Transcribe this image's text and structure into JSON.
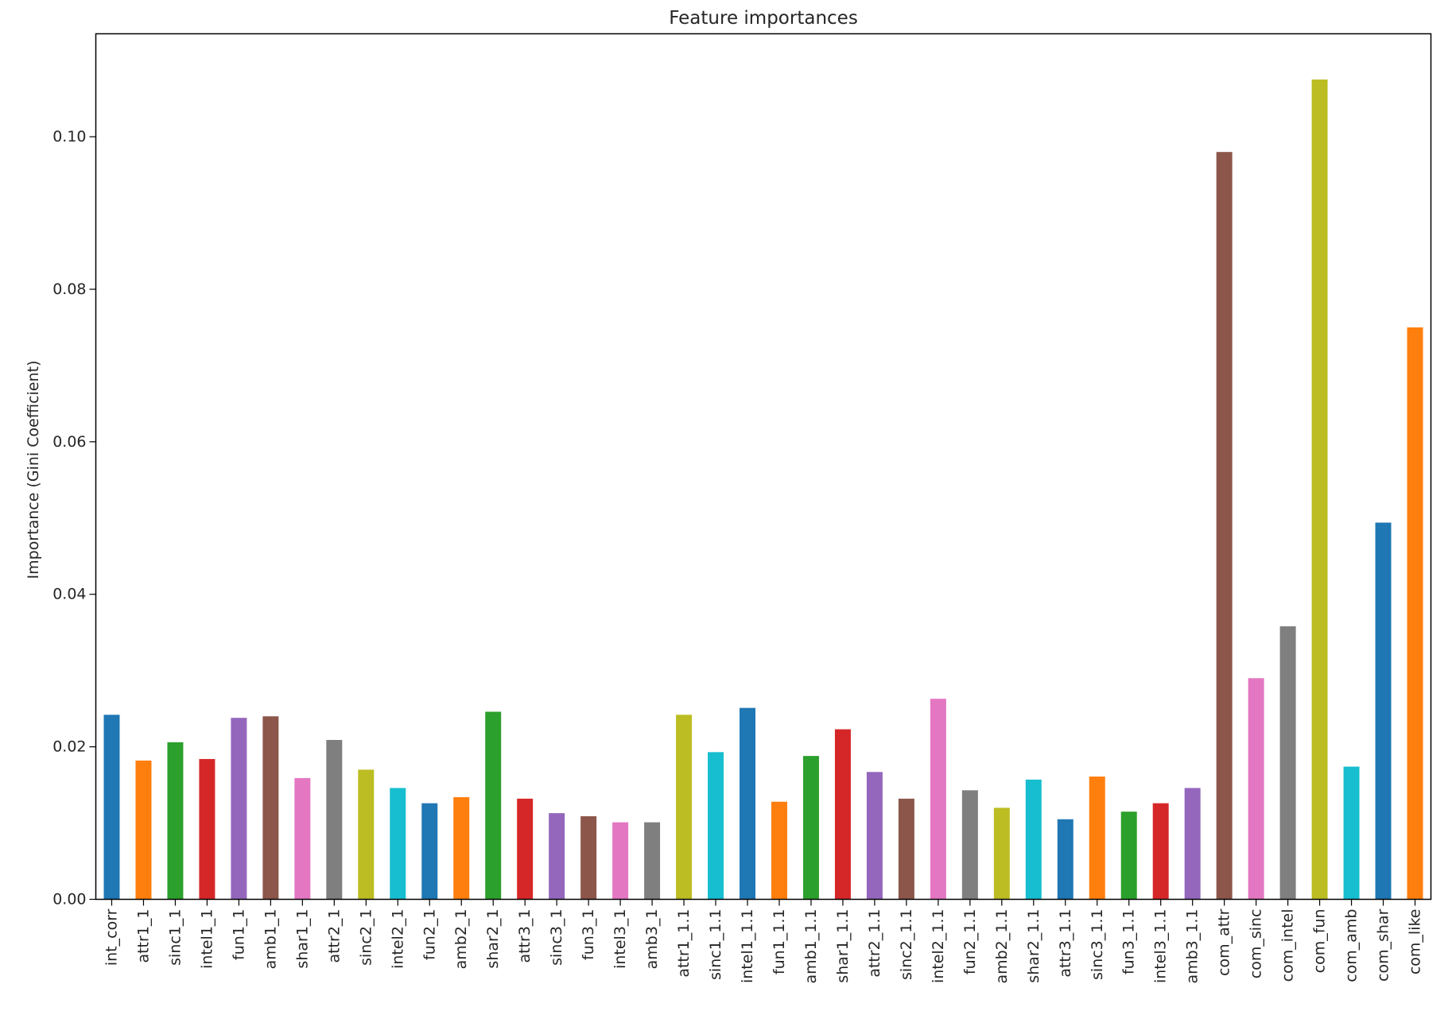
{
  "chart_data": {
    "type": "bar",
    "title": "Feature importances",
    "xlabel": "",
    "ylabel": "Importance (Gini Coefficient)",
    "ylim": [
      0,
      0.1135
    ],
    "yticks": [
      0.0,
      0.02,
      0.04,
      0.06,
      0.08,
      0.1
    ],
    "ytick_labels": [
      "0.00",
      "0.02",
      "0.04",
      "0.06",
      "0.08",
      "0.10"
    ],
    "grid": false,
    "legend": "none",
    "categories": [
      "int_corr",
      "attr1_1",
      "sinc1_1",
      "intel1_1",
      "fun1_1",
      "amb1_1",
      "shar1_1",
      "attr2_1",
      "sinc2_1",
      "intel2_1",
      "fun2_1",
      "amb2_1",
      "shar2_1",
      "attr3_1",
      "sinc3_1",
      "fun3_1",
      "intel3_1",
      "amb3_1",
      "attr1_1.1",
      "sinc1_1.1",
      "intel1_1.1",
      "fun1_1.1",
      "amb1_1.1",
      "shar1_1.1",
      "attr2_1.1",
      "sinc2_1.1",
      "intel2_1.1",
      "fun2_1.1",
      "amb2_1.1",
      "shar2_1.1",
      "attr3_1.1",
      "sinc3_1.1",
      "fun3_1.1",
      "intel3_1.1",
      "amb3_1.1",
      "com_attr",
      "com_sinc",
      "com_intel",
      "com_fun",
      "com_amb",
      "com_shar",
      "com_like"
    ],
    "values": [
      0.0242,
      0.0182,
      0.0206,
      0.0184,
      0.0238,
      0.024,
      0.0159,
      0.0209,
      0.017,
      0.0146,
      0.0126,
      0.0134,
      0.0246,
      0.0132,
      0.0113,
      0.0109,
      0.0101,
      0.0101,
      0.0242,
      0.0193,
      0.0251,
      0.0128,
      0.0188,
      0.0223,
      0.0167,
      0.0132,
      0.0263,
      0.0143,
      0.012,
      0.0157,
      0.0105,
      0.0161,
      0.0115,
      0.0126,
      0.0146,
      0.098,
      0.029,
      0.0358,
      0.1075,
      0.0174,
      0.0494,
      0.075
    ],
    "palette": [
      "#1f77b4",
      "#ff7f0e",
      "#2ca02c",
      "#d62728",
      "#9467bd",
      "#8c564b",
      "#e377c2",
      "#7f7f7f",
      "#bcbd22",
      "#17becf"
    ]
  }
}
